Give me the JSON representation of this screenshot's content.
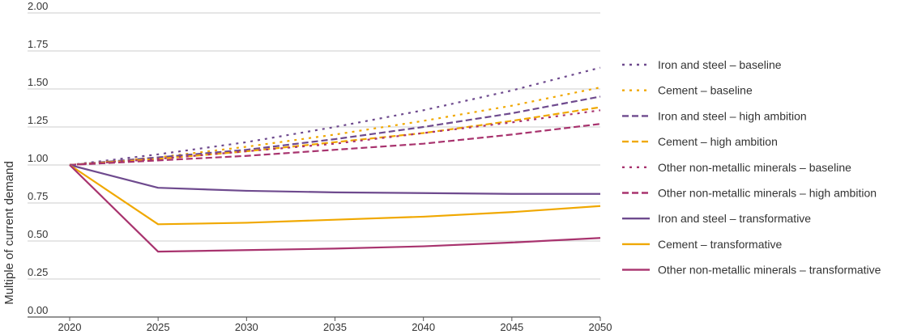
{
  "chart_data": {
    "type": "line",
    "title": "",
    "xlabel": "",
    "ylabel": "Multiple of current demand",
    "x": [
      2020,
      2025,
      2030,
      2035,
      2040,
      2045,
      2050
    ],
    "xlim": [
      2020,
      2050
    ],
    "ylim": [
      0,
      2
    ],
    "y_ticks": [
      "0.00",
      "0.25",
      "0.50",
      "0.75",
      "1.00",
      "1.25",
      "1.50",
      "1.75",
      "2.00"
    ],
    "x_ticks": [
      "2020",
      "2025",
      "2030",
      "2035",
      "2040",
      "2045",
      "2050"
    ],
    "grid": "horizontal",
    "legend_position": "right",
    "series": [
      {
        "name": "Iron and steel – baseline",
        "color": "#6e4a8e",
        "style": "dotted",
        "values": [
          1.0,
          1.07,
          1.15,
          1.25,
          1.36,
          1.49,
          1.64
        ]
      },
      {
        "name": "Cement – baseline",
        "color": "#f0a800",
        "style": "dotted",
        "values": [
          1.0,
          1.05,
          1.12,
          1.2,
          1.29,
          1.39,
          1.51
        ]
      },
      {
        "name": "Iron and steel – high ambition",
        "color": "#6e4a8e",
        "style": "dashed",
        "values": [
          1.0,
          1.05,
          1.1,
          1.17,
          1.25,
          1.34,
          1.45
        ]
      },
      {
        "name": "Cement – high ambition",
        "color": "#f0a800",
        "style": "dashed",
        "values": [
          1.0,
          1.04,
          1.09,
          1.15,
          1.21,
          1.29,
          1.38
        ]
      },
      {
        "name": "Other non-metallic minerals – baseline",
        "color": "#a8336e",
        "style": "dotted",
        "values": [
          1.0,
          1.04,
          1.09,
          1.14,
          1.21,
          1.28,
          1.36
        ]
      },
      {
        "name": "Other non-metallic minerals – high ambition",
        "color": "#a8336e",
        "style": "dashed",
        "values": [
          1.0,
          1.03,
          1.06,
          1.1,
          1.14,
          1.2,
          1.27
        ]
      },
      {
        "name": "Iron and steel – transformative",
        "color": "#6e4a8e",
        "style": "solid",
        "values": [
          1.0,
          0.85,
          0.83,
          0.82,
          0.815,
          0.81,
          0.81
        ]
      },
      {
        "name": "Cement – transformative",
        "color": "#f0a800",
        "style": "solid",
        "values": [
          1.0,
          0.61,
          0.62,
          0.64,
          0.66,
          0.69,
          0.73
        ]
      },
      {
        "name": "Other non-metallic minerals – transformative",
        "color": "#a8336e",
        "style": "solid",
        "values": [
          1.0,
          0.43,
          0.44,
          0.45,
          0.465,
          0.49,
          0.52
        ]
      }
    ]
  }
}
